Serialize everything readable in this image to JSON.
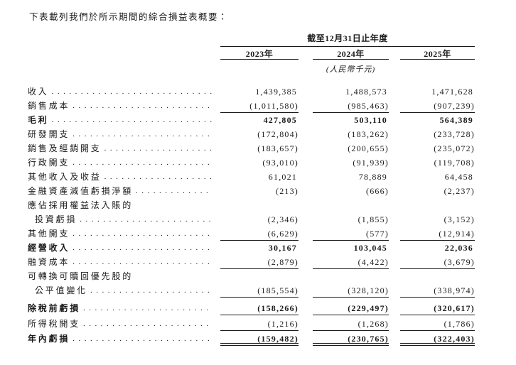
{
  "page": {
    "intro": "下表載列我們於所示期間的綜合損益表概要："
  },
  "table": {
    "period_header": "截至12月31日止年度",
    "columns": [
      "2023年",
      "2024年",
      "2025年"
    ],
    "unit_note": "(人民幣千元)",
    "rows": [
      {
        "label": "收入",
        "dots": true,
        "bold": false,
        "indent": false,
        "values": [
          "1,439,385",
          "1,488,573",
          "1,471,628"
        ],
        "rule": "none"
      },
      {
        "label": "銷售成本",
        "dots": true,
        "bold": false,
        "indent": false,
        "values": [
          "(1,011,580)",
          "(985,463)",
          "(907,239)"
        ],
        "rule": "single"
      },
      {
        "label": "毛利",
        "dots": true,
        "bold": true,
        "indent": false,
        "values": [
          "427,805",
          "503,110",
          "564,389"
        ],
        "rule": "none"
      },
      {
        "label": "研發開支",
        "dots": true,
        "bold": false,
        "indent": false,
        "values": [
          "(172,804)",
          "(183,262)",
          "(233,728)"
        ],
        "rule": "none"
      },
      {
        "label": "銷售及經銷開支",
        "dots": true,
        "bold": false,
        "indent": false,
        "values": [
          "(183,657)",
          "(200,655)",
          "(235,072)"
        ],
        "rule": "none"
      },
      {
        "label": "行政開支",
        "dots": true,
        "bold": false,
        "indent": false,
        "values": [
          "(93,010)",
          "(91,939)",
          "(119,708)"
        ],
        "rule": "none"
      },
      {
        "label": "其他收入及收益",
        "dots": true,
        "bold": false,
        "indent": false,
        "values": [
          "61,021",
          "78,889",
          "64,458"
        ],
        "rule": "none"
      },
      {
        "label": "金融資產減值虧損淨額",
        "dots": true,
        "bold": false,
        "indent": false,
        "values": [
          "(213)",
          "(666)",
          "(2,237)"
        ],
        "rule": "none"
      },
      {
        "label": "應佔採用權益法入賬的",
        "dots": false,
        "bold": false,
        "indent": false,
        "values": null,
        "rule": "none"
      },
      {
        "label": "投資虧損",
        "dots": true,
        "bold": false,
        "indent": true,
        "values": [
          "(2,346)",
          "(1,855)",
          "(3,152)"
        ],
        "rule": "none"
      },
      {
        "label": "其他開支",
        "dots": true,
        "bold": false,
        "indent": false,
        "values": [
          "(6,629)",
          "(577)",
          "(12,914)"
        ],
        "rule": "single"
      },
      {
        "label": "經營收入",
        "dots": true,
        "bold": true,
        "indent": false,
        "values": [
          "30,167",
          "103,045",
          "22,036"
        ],
        "rule": "none"
      },
      {
        "label": "融資成本",
        "dots": true,
        "bold": false,
        "indent": false,
        "values": [
          "(2,879)",
          "(4,422)",
          "(3,679)"
        ],
        "rule": "single"
      },
      {
        "label": "可轉換可贖回優先股的",
        "dots": false,
        "bold": false,
        "indent": false,
        "values": null,
        "rule": "none"
      },
      {
        "label": "公平值變化",
        "dots": true,
        "bold": false,
        "indent": true,
        "values": [
          "(185,554)",
          "(328,120)",
          "(338,974)"
        ],
        "rule": "single"
      },
      {
        "label": "除稅前虧損",
        "dots": true,
        "bold": true,
        "indent": false,
        "values": [
          "(158,266)",
          "(229,497)",
          "(320,617)"
        ],
        "rule": "single"
      },
      {
        "label": "所得稅開支",
        "dots": true,
        "bold": false,
        "indent": false,
        "values": [
          "(1,216)",
          "(1,268)",
          "(1,786)"
        ],
        "rule": "single"
      },
      {
        "label": "年內虧損",
        "dots": true,
        "bold": true,
        "indent": false,
        "values": [
          "(159,482)",
          "(230,765)",
          "(322,403)"
        ],
        "rule": "double"
      }
    ]
  }
}
